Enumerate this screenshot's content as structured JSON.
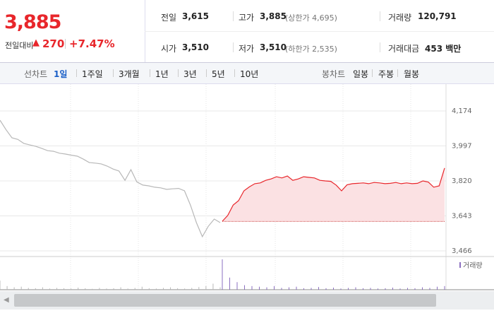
{
  "price": {
    "current": "3,885",
    "change_label": "전일대비",
    "change": "270",
    "change_pct": "+7.47%"
  },
  "info": [
    {
      "label": "전일",
      "value": "3,615"
    },
    {
      "label": "고가",
      "value": "3,885",
      "note": "(상한가 4,695)"
    },
    {
      "label": "거래량",
      "value": "120,791"
    },
    {
      "label": "시가",
      "value": "3,510"
    },
    {
      "label": "저가",
      "value": "3,510",
      "note": "(하한가 2,535)"
    },
    {
      "label": "거래대금",
      "value": "453 백만"
    }
  ],
  "tabs": {
    "line_label": "선차트",
    "line": [
      "1일",
      "1주일",
      "3개월",
      "1년",
      "3년",
      "5년",
      "10년"
    ],
    "candle_label": "봉차트",
    "candle": [
      "일봉",
      "주봉",
      "월봉"
    ]
  },
  "chart_data": {
    "type": "line",
    "ylim": [
      3466,
      4174
    ],
    "yticks": [
      {
        "value": 3466,
        "label": "3,466"
      },
      {
        "value": 3643,
        "label": "3,643"
      },
      {
        "value": 3820,
        "label": "3,820"
      },
      {
        "value": 3997,
        "label": "3,997"
      },
      {
        "value": 4174,
        "label": "4,174"
      }
    ],
    "base": 3615,
    "grid": true,
    "series": [
      {
        "color": "#b8b8b8",
        "values": [
          4127,
          4080,
          4038,
          4030,
          4010,
          4002,
          3995,
          3985,
          3973,
          3970,
          3960,
          3956,
          3950,
          3945,
          3930,
          3913,
          3910,
          3906,
          3895,
          3880,
          3870,
          3823,
          3877,
          3815,
          3799,
          3795,
          3788,
          3785,
          3777,
          3780,
          3782,
          3770,
          3698,
          3609,
          3538,
          3590,
          3627,
          3609
        ]
      },
      {
        "color": "#e8262b",
        "fill": "#fbe1e3",
        "values": [
          3616,
          3645,
          3698,
          3720,
          3770,
          3790,
          3806,
          3810,
          3823,
          3830,
          3841,
          3835,
          3845,
          3823,
          3830,
          3841,
          3838,
          3835,
          3823,
          3820,
          3818,
          3799,
          3770,
          3800,
          3806,
          3808,
          3810,
          3806,
          3812,
          3810,
          3806,
          3808,
          3812,
          3806,
          3810,
          3806,
          3808,
          3820,
          3814,
          3788,
          3795,
          3885
        ]
      }
    ],
    "volume": {
      "label": "거래량",
      "series": [
        {
          "color": "#b8b8b8",
          "values": [
            30,
            12,
            8,
            10,
            6,
            5,
            8,
            4,
            6,
            5,
            4,
            7,
            5,
            3,
            6,
            4,
            5,
            8,
            4,
            6,
            10,
            5,
            4,
            6,
            8,
            5,
            4,
            6,
            9,
            12,
            20,
            8
          ]
        },
        {
          "color": "#8b6fc0",
          "values": [
            100,
            40,
            25,
            15,
            12,
            10,
            8,
            12,
            6,
            8,
            10,
            5,
            6,
            9,
            5,
            7,
            4,
            6,
            8,
            5,
            6,
            4,
            5,
            7,
            4,
            6,
            5,
            8,
            6,
            10,
            12
          ]
        }
      ]
    }
  }
}
